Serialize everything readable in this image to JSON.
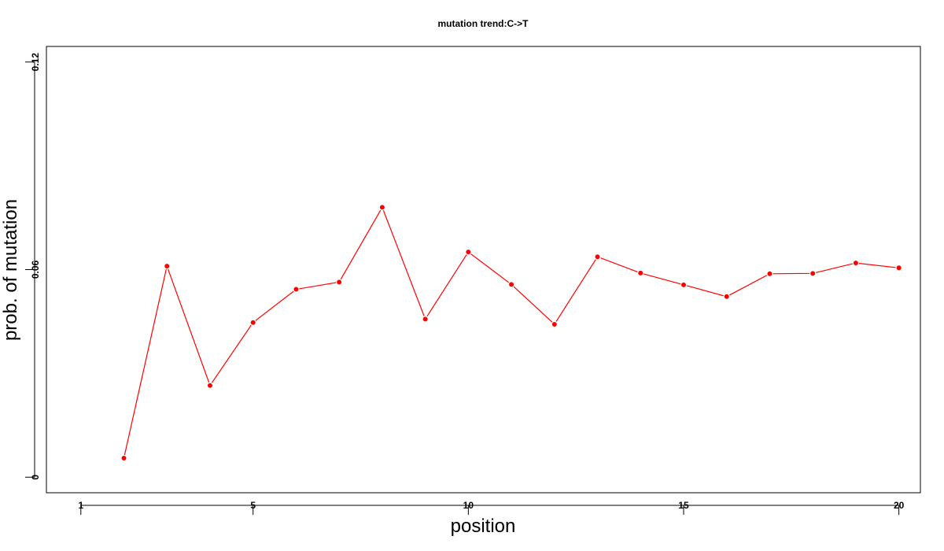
{
  "chart_data": {
    "type": "line",
    "title": "mutation trend:C->T",
    "xlabel": "position",
    "ylabel": "prob. of mutation",
    "x_ticks": [
      1,
      5,
      10,
      15,
      20
    ],
    "y_ticks": [
      0,
      0.06,
      0.12
    ],
    "y_tick_labels": [
      "0",
      "0.06",
      "0.12"
    ],
    "xlim": [
      0.2,
      20.5
    ],
    "ylim": [
      -0.0045,
      0.1245
    ],
    "grid": false,
    "legend": "none",
    "series": [
      {
        "color": "#ff0000",
        "x": [
          2,
          3,
          4,
          5,
          6,
          7,
          8,
          9,
          10,
          11,
          12,
          13,
          14,
          15,
          16,
          17,
          18,
          19,
          20
        ],
        "values": [
          0.0055,
          0.061,
          0.0265,
          0.0447,
          0.0543,
          0.0564,
          0.078,
          0.0457,
          0.0651,
          0.0557,
          0.0442,
          0.0637,
          0.059,
          0.0556,
          0.0522,
          0.0588,
          0.0589,
          0.0619,
          0.0605
        ]
      }
    ]
  }
}
